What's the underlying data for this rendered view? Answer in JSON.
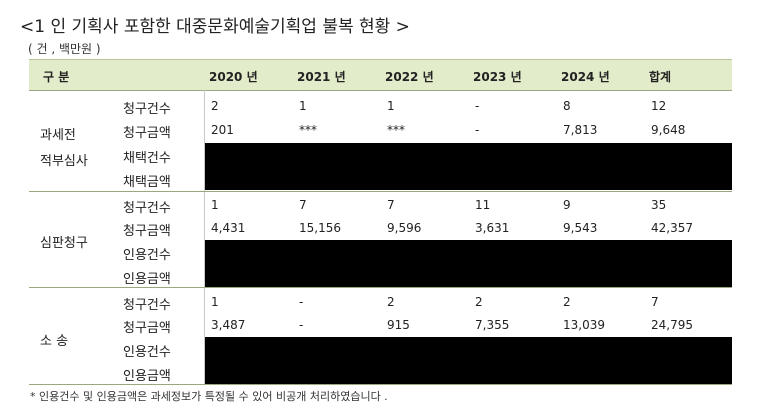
{
  "title": "<1 인 기획사 포함한 대중문화예술기획업 불복 현황 >",
  "unit": "( 건 , 백만원 )",
  "header": {
    "category": "구 분",
    "years": [
      "2020 년",
      "2021 년",
      "2022 년",
      "2023 년",
      "2024 년",
      "합계"
    ]
  },
  "groups": [
    {
      "label_lines": [
        "과세전",
        "적부심사"
      ],
      "rows": [
        {
          "label": "청구건수",
          "values": [
            "2",
            "1",
            "1",
            "-",
            "8",
            "12"
          ]
        },
        {
          "label": "청구금액",
          "values": [
            "201",
            "***",
            "***",
            "-",
            "7,813",
            "9,648"
          ]
        },
        {
          "label": "채택건수",
          "values": []
        },
        {
          "label": "채택금액",
          "values": []
        }
      ]
    },
    {
      "label_lines": [
        "심판청구"
      ],
      "rows": [
        {
          "label": "청구건수",
          "values": [
            "1",
            "7",
            "7",
            "11",
            "9",
            "35"
          ]
        },
        {
          "label": "청구금액",
          "values": [
            "4,431",
            "15,156",
            "9,596",
            "3,631",
            "9,543",
            "42,357"
          ]
        },
        {
          "label": "인용건수",
          "values": []
        },
        {
          "label": "인용금액",
          "values": []
        }
      ]
    },
    {
      "label_lines": [
        "소 송"
      ],
      "rows": [
        {
          "label": "청구건수",
          "values": [
            "1",
            "-",
            "2",
            "2",
            "2",
            "7"
          ]
        },
        {
          "label": "청구금액",
          "values": [
            "3,487",
            "-",
            "915",
            "7,355",
            "13,039",
            "24,795"
          ]
        },
        {
          "label": "인용건수",
          "values": []
        },
        {
          "label": "인용금액",
          "values": []
        }
      ]
    }
  ],
  "footnote": "* 인용건수 및 인용금액은 과세정보가 특정될 수 있어 비공개 처리하였습니다 ."
}
